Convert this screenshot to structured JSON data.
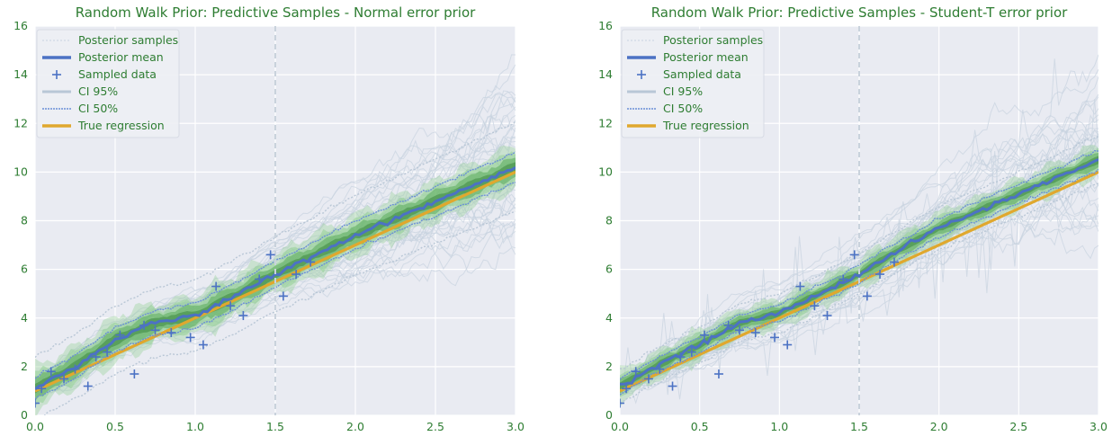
{
  "chart_data": [
    {
      "type": "line",
      "title": "Random Walk Prior: Predictive Samples - Normal error prior",
      "xlim": [
        0,
        3.0
      ],
      "ylim": [
        0,
        16
      ],
      "x_ticks": [
        "0.0",
        "0.5",
        "1.0",
        "1.5",
        "2.0",
        "2.5",
        "3.0"
      ],
      "y_ticks": [
        "0",
        "2",
        "4",
        "6",
        "8",
        "10",
        "12",
        "14",
        "16"
      ],
      "vline_x": 1.5,
      "grid": true,
      "legend_position": "top-left",
      "legend": [
        "Posterior samples",
        "Posterior mean",
        "Sampled data",
        "CI 95%",
        "CI 50%",
        "True regression"
      ],
      "true_regression": {
        "x": [
          0,
          3.0
        ],
        "y": [
          1.0,
          10.0
        ]
      },
      "posterior_mean": {
        "x": [
          0,
          0.25,
          0.5,
          0.75,
          1.0,
          1.25,
          1.5,
          1.75,
          2.0,
          2.25,
          2.5,
          2.75,
          3.0
        ],
        "y": [
          1.1,
          2.0,
          3.1,
          3.8,
          4.1,
          4.9,
          5.8,
          6.6,
          7.4,
          8.1,
          8.8,
          9.5,
          10.2
        ]
      },
      "ci50": {
        "lower_offset": -0.45,
        "upper_offset": 0.45
      },
      "ci95": {
        "lower_offset": -1.3,
        "upper_offset": 1.3
      },
      "sampled_data": {
        "x": [
          0.0,
          0.04,
          0.1,
          0.18,
          0.25,
          0.33,
          0.38,
          0.45,
          0.53,
          0.62,
          0.68,
          0.75,
          0.85,
          0.97,
          1.05,
          1.13,
          1.22,
          1.3,
          1.4,
          1.47,
          1.55,
          1.63,
          1.72
        ],
        "y": [
          0.5,
          1.1,
          1.8,
          1.5,
          1.9,
          1.2,
          2.4,
          2.6,
          3.3,
          1.7,
          3.7,
          3.5,
          3.4,
          3.2,
          2.9,
          5.3,
          4.5,
          4.1,
          5.6,
          6.6,
          4.9,
          5.8,
          6.3
        ]
      }
    },
    {
      "type": "line",
      "title": "Random Walk Prior: Predictive Samples - Student-T error prior",
      "xlim": [
        0,
        3.0
      ],
      "ylim": [
        0,
        16
      ],
      "x_ticks": [
        "0.0",
        "0.5",
        "1.0",
        "1.5",
        "2.0",
        "2.5",
        "3.0"
      ],
      "y_ticks": [
        "0",
        "2",
        "4",
        "6",
        "8",
        "10",
        "12",
        "14",
        "16"
      ],
      "vline_x": 1.5,
      "grid": true,
      "legend_position": "top-left",
      "legend": [
        "Posterior samples",
        "Posterior mean",
        "Sampled data",
        "CI 95%",
        "CI 50%",
        "True regression"
      ],
      "true_regression": {
        "x": [
          0,
          3.0
        ],
        "y": [
          1.0,
          10.0
        ]
      },
      "posterior_mean": {
        "x": [
          0,
          0.25,
          0.5,
          0.75,
          1.0,
          1.25,
          1.5,
          1.75,
          2.0,
          2.25,
          2.5,
          2.75,
          3.0
        ],
        "y": [
          1.2,
          2.1,
          2.9,
          3.8,
          4.2,
          5.0,
          5.8,
          6.8,
          7.7,
          8.4,
          9.1,
          9.8,
          10.5
        ]
      },
      "ci50": {
        "lower_offset": -0.3,
        "upper_offset": 0.3
      },
      "ci95": {
        "lower_offset": -0.7,
        "upper_offset": 0.7
      },
      "sampled_data": {
        "x": [
          0.0,
          0.04,
          0.1,
          0.18,
          0.25,
          0.33,
          0.38,
          0.45,
          0.53,
          0.62,
          0.68,
          0.75,
          0.85,
          0.97,
          1.05,
          1.13,
          1.22,
          1.3,
          1.4,
          1.47,
          1.55,
          1.63,
          1.72
        ],
        "y": [
          0.5,
          1.1,
          1.8,
          1.5,
          1.9,
          1.2,
          2.4,
          2.6,
          3.3,
          1.7,
          3.7,
          3.5,
          3.4,
          3.2,
          2.9,
          5.3,
          4.5,
          4.1,
          5.6,
          6.6,
          4.9,
          5.8,
          6.3
        ]
      }
    }
  ],
  "colors": {
    "background": "#e9ebf2",
    "grid": "#ffffff",
    "text": "#2e7d32",
    "posterior_samples": "#c8d3e0",
    "posterior_mean": "#4c72c4",
    "sampled_data": "#4c72c4",
    "ci95": "#b9c7d6",
    "ci50": "#6b8fd6",
    "true_regression": "#e0a82e",
    "density_dark": "#2e7d32",
    "density_light": "#8fcf8f",
    "vline": "#c9d2dc"
  }
}
